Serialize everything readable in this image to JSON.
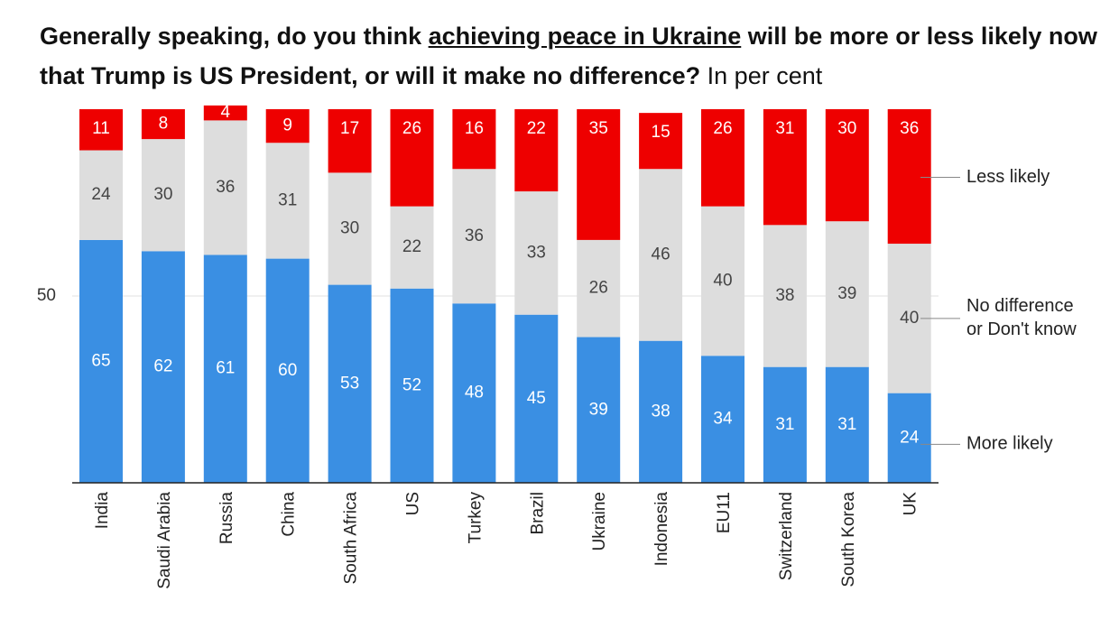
{
  "title": {
    "part1": "Generally speaking, do you think ",
    "underlined": "achieving peace in Ukraine",
    "part2": " will be more or less likely now that Trump is US President, or will it make no difference?",
    "unit": " In per cent"
  },
  "chart_data": {
    "type": "bar",
    "stacked": true,
    "orientation": "vertical",
    "categories": [
      "India",
      "Saudi Arabia",
      "Russia",
      "China",
      "South Africa",
      "US",
      "Turkey",
      "Brazil",
      "Ukraine",
      "Indonesia",
      "EU11",
      "Switzerland",
      "South Korea",
      "UK"
    ],
    "series": [
      {
        "name": "More likely",
        "color": "#3a8fe3",
        "values": [
          65,
          62,
          61,
          60,
          53,
          52,
          48,
          45,
          39,
          38,
          34,
          31,
          31,
          24
        ]
      },
      {
        "name": "No difference or Don't know",
        "color": "#dddddd",
        "values": [
          24,
          30,
          36,
          31,
          30,
          22,
          36,
          33,
          26,
          46,
          40,
          38,
          39,
          40
        ]
      },
      {
        "name": "Less likely",
        "color": "#ee0000",
        "values": [
          11,
          8,
          4,
          9,
          17,
          26,
          16,
          22,
          35,
          15,
          26,
          31,
          30,
          36
        ]
      }
    ],
    "legend": {
      "less": "Less likely",
      "nodiff_line1": "No difference",
      "nodiff_line2": "or Don't know",
      "more": "More likely"
    },
    "yaxis": {
      "tick_value": 50,
      "tick_label": "50"
    },
    "ylim": [
      0,
      100
    ],
    "xlabel": "",
    "ylabel": ""
  }
}
